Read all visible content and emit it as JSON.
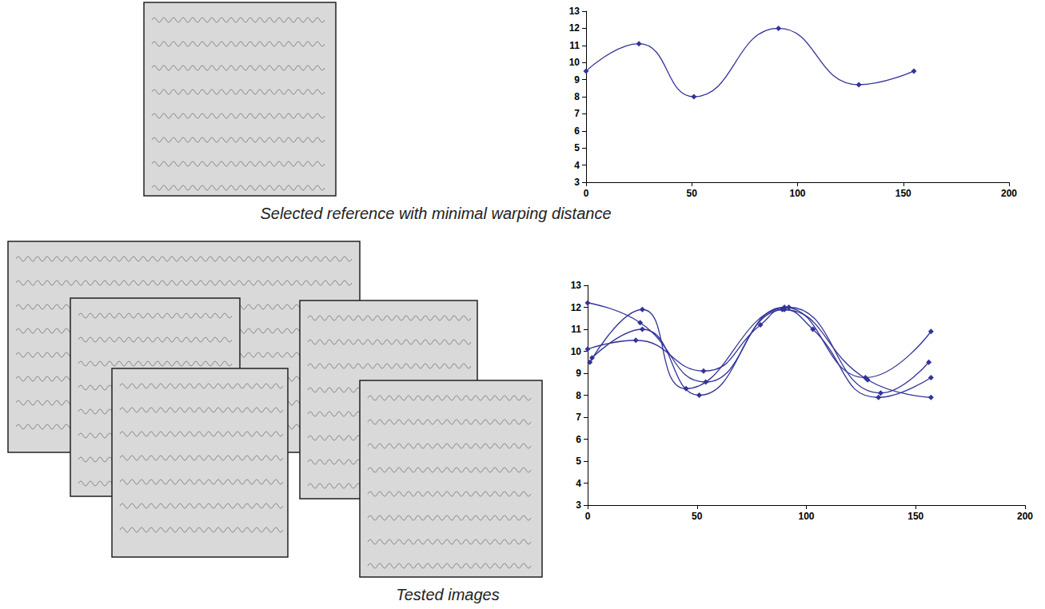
{
  "chart_data": [
    {
      "type": "line",
      "title": "Selected reference with minimal warping distance",
      "xlim": [
        0,
        200
      ],
      "xticks": [
        0,
        50,
        100,
        150,
        200
      ],
      "ylim": [
        3,
        13
      ],
      "yticks": [
        3,
        4,
        5,
        6,
        7,
        8,
        9,
        10,
        11,
        12,
        13
      ],
      "grid": false,
      "marker": "diamond",
      "line_style": "smooth",
      "color": "#33339a",
      "series": [
        {
          "x": [
            0,
            25,
            51,
            91,
            129,
            155
          ],
          "values": [
            9.5,
            11.1,
            8.0,
            12.0,
            8.7,
            9.5
          ]
        }
      ]
    },
    {
      "type": "line",
      "title": "Tested images",
      "xlim": [
        0,
        200
      ],
      "xticks": [
        0,
        50,
        100,
        150,
        200
      ],
      "ylim": [
        3,
        13
      ],
      "yticks": [
        3,
        4,
        5,
        6,
        7,
        8,
        9,
        10,
        11,
        12,
        13
      ],
      "grid": false,
      "marker": "diamond",
      "line_style": "smooth",
      "color": "#33339a",
      "series": [
        {
          "x": [
            0,
            24,
            54,
            90,
            127,
            157
          ],
          "values": [
            12.2,
            11.3,
            8.6,
            12.0,
            8.8,
            10.9
          ]
        },
        {
          "x": [
            0,
            22,
            53,
            79,
            89,
            128,
            157
          ],
          "values": [
            10.1,
            10.5,
            9.1,
            11.2,
            11.9,
            8.7,
            7.9
          ]
        },
        {
          "x": [
            1,
            25,
            45,
            92,
            134,
            156
          ],
          "values": [
            9.5,
            11.9,
            8.3,
            12.0,
            8.1,
            9.5
          ]
        },
        {
          "x": [
            2,
            25,
            51,
            90,
            103,
            133,
            157
          ],
          "values": [
            9.7,
            11.0,
            8.0,
            11.9,
            11.0,
            7.9,
            8.8
          ]
        }
      ]
    }
  ]
}
